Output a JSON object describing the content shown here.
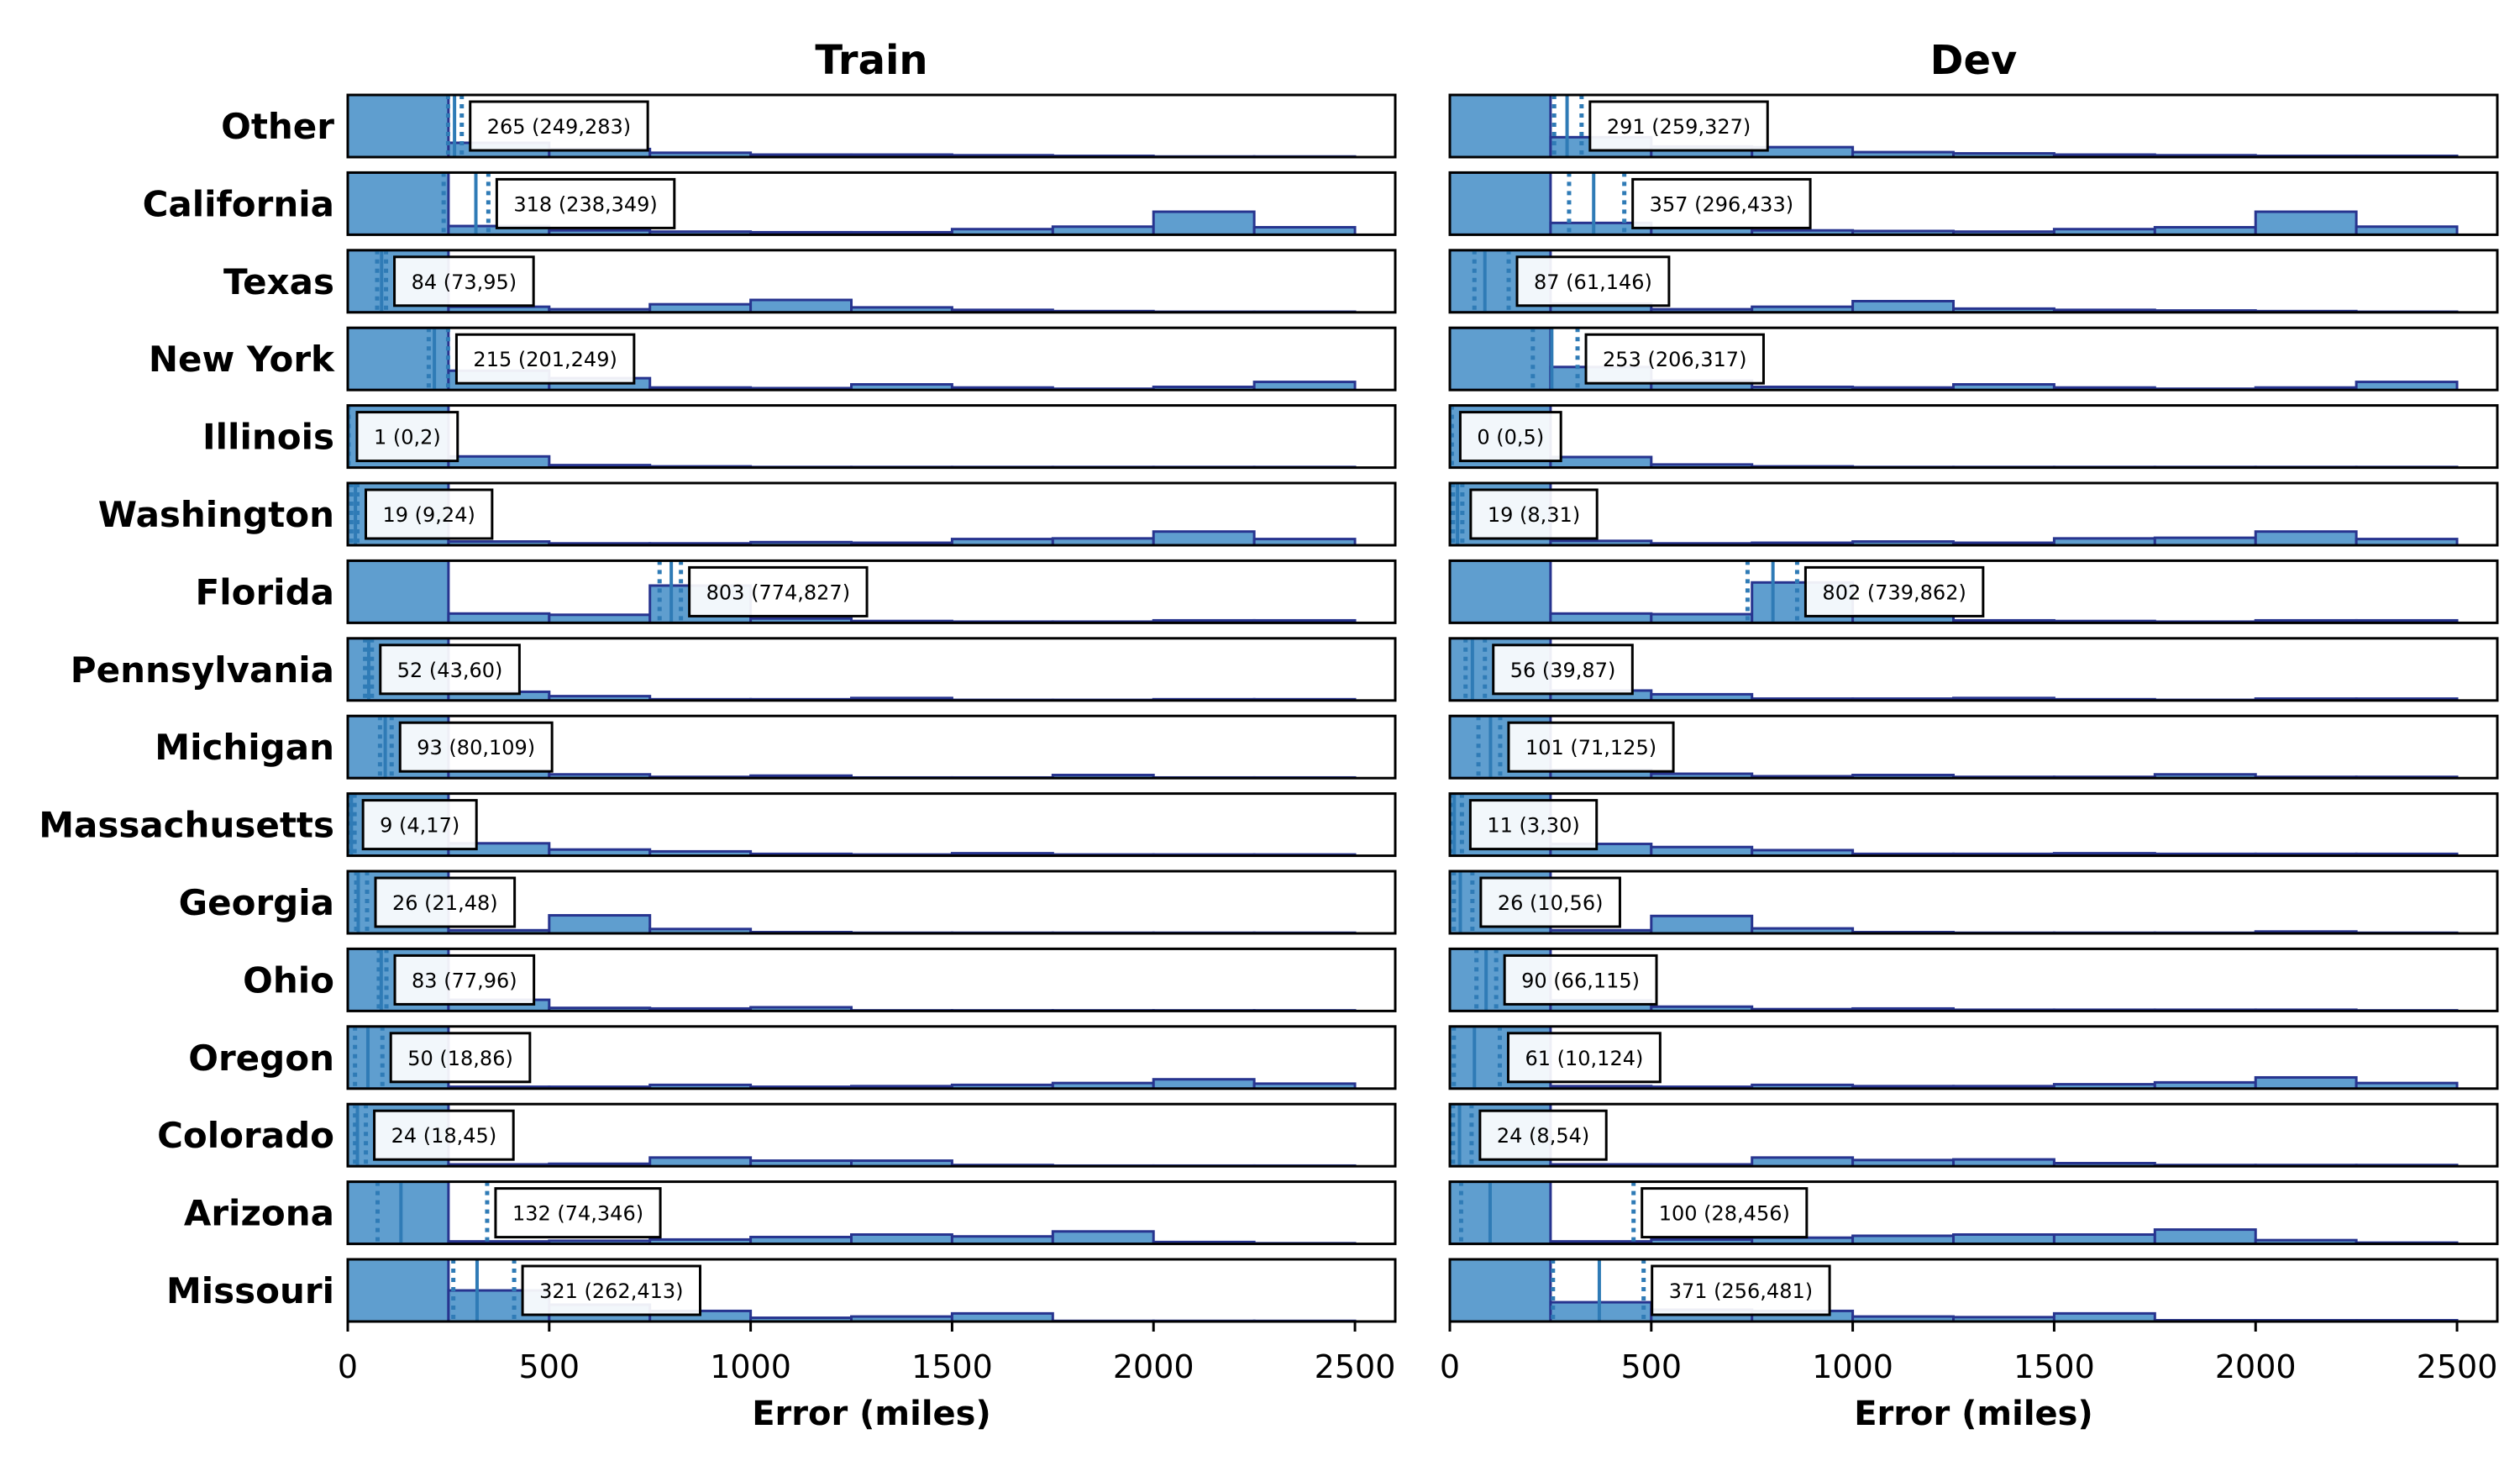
{
  "chart_data": {
    "type": "histogram",
    "xlabel": "Error (miles)",
    "xlim": [
      0,
      2600
    ],
    "x_ticks": [
      0,
      500,
      1000,
      1500,
      2000,
      2500
    ],
    "bin_edges": [
      0,
      250,
      500,
      750,
      1000,
      1250,
      1500,
      1750,
      2000,
      2250,
      2500
    ],
    "colors": {
      "bar_fill": "#5f9ecf",
      "bar_edge": "#27348f",
      "median_line": "#2f7bb6",
      "frame": "#000000"
    },
    "rows": [
      "Other",
      "California",
      "Texas",
      "New York",
      "Illinois",
      "Washington",
      "Florida",
      "Pennsylvania",
      "Michigan",
      "Massachusetts",
      "Georgia",
      "Ohio",
      "Oregon",
      "Colorado",
      "Arizona",
      "Missouri"
    ],
    "panels": [
      {
        "title": "Train",
        "series": [
          {
            "name": "Other",
            "median": 265,
            "ci": [
              249,
              283
            ],
            "label": "265 (249,283)",
            "hist": [
              1,
              0.23,
              0.13,
              0.07,
              0.04,
              0.04,
              0.03,
              0.02,
              0.01,
              0.01
            ]
          },
          {
            "name": "California",
            "median": 318,
            "ci": [
              238,
              349
            ],
            "label": "318 (238,349)",
            "hist": [
              1,
              0.14,
              0.07,
              0.05,
              0.04,
              0.04,
              0.09,
              0.13,
              0.37,
              0.12
            ]
          },
          {
            "name": "Texas",
            "median": 84,
            "ci": [
              73,
              95
            ],
            "label": "84 (73,95)",
            "hist": [
              1,
              0.09,
              0.05,
              0.13,
              0.2,
              0.08,
              0.04,
              0.02,
              0.01,
              0.01
            ]
          },
          {
            "name": "New York",
            "median": 215,
            "ci": [
              201,
              249
            ],
            "label": "215 (201,249)",
            "hist": [
              1,
              0.31,
              0.19,
              0.04,
              0.03,
              0.09,
              0.04,
              0.02,
              0.05,
              0.13
            ]
          },
          {
            "name": "Illinois",
            "median": 1,
            "ci": [
              0,
              2
            ],
            "label": "1 (0,2)",
            "hist": [
              1,
              0.18,
              0.04,
              0.02,
              0.01,
              0.01,
              0.01,
              0.01,
              0.01,
              0.01
            ]
          },
          {
            "name": "Washington",
            "median": 19,
            "ci": [
              9,
              24
            ],
            "label": "19 (9,24)",
            "hist": [
              1,
              0.06,
              0.03,
              0.03,
              0.05,
              0.04,
              0.1,
              0.11,
              0.22,
              0.1
            ]
          },
          {
            "name": "Florida",
            "median": 803,
            "ci": [
              774,
              827
            ],
            "label": "803 (774,827)",
            "hist": [
              1,
              0.15,
              0.13,
              0.6,
              0.07,
              0.03,
              0.02,
              0.02,
              0.04,
              0.04
            ]
          },
          {
            "name": "Pennsylvania",
            "median": 52,
            "ci": [
              43,
              60
            ],
            "label": "52 (43,60)",
            "hist": [
              1,
              0.14,
              0.07,
              0.02,
              0.02,
              0.04,
              0.01,
              0.01,
              0.02,
              0.02
            ]
          },
          {
            "name": "Michigan",
            "median": 93,
            "ci": [
              80,
              109
            ],
            "label": "93 (80,109)",
            "hist": [
              1,
              0.12,
              0.06,
              0.02,
              0.04,
              0.01,
              0.01,
              0.05,
              0.01,
              0.01
            ]
          },
          {
            "name": "Massachusetts",
            "median": 9,
            "ci": [
              4,
              17
            ],
            "label": "9 (4,17)",
            "hist": [
              1,
              0.2,
              0.1,
              0.07,
              0.03,
              0.02,
              0.04,
              0.02,
              0.02,
              0.02
            ]
          },
          {
            "name": "Georgia",
            "median": 26,
            "ci": [
              21,
              48
            ],
            "label": "26 (21,48)",
            "hist": [
              1,
              0.05,
              0.29,
              0.07,
              0.02,
              0.01,
              0.01,
              0.01,
              0.01,
              0.01
            ]
          },
          {
            "name": "Ohio",
            "median": 83,
            "ci": [
              77,
              96
            ],
            "label": "83 (77,96)",
            "hist": [
              1,
              0.18,
              0.05,
              0.04,
              0.06,
              0.01,
              0.01,
              0.01,
              0.01,
              0.01
            ]
          },
          {
            "name": "Oregon",
            "median": 50,
            "ci": [
              18,
              86
            ],
            "label": "50 (18,86)",
            "hist": [
              1,
              0.03,
              0.03,
              0.06,
              0.03,
              0.04,
              0.06,
              0.09,
              0.15,
              0.08
            ]
          },
          {
            "name": "Colorado",
            "median": 24,
            "ci": [
              18,
              45
            ],
            "label": "24 (18,45)",
            "hist": [
              1,
              0.03,
              0.04,
              0.14,
              0.09,
              0.09,
              0.02,
              0.01,
              0.01,
              0.01
            ]
          },
          {
            "name": "Arizona",
            "median": 132,
            "ci": [
              74,
              346
            ],
            "label": "132 (74,346)",
            "hist": [
              1,
              0.04,
              0.05,
              0.07,
              0.11,
              0.15,
              0.12,
              0.2,
              0.03,
              0.01
            ]
          },
          {
            "name": "Missouri",
            "median": 321,
            "ci": [
              262,
              413
            ],
            "label": "321 (262,413)",
            "hist": [
              1,
              0.5,
              0.27,
              0.17,
              0.06,
              0.08,
              0.13,
              0.01,
              0.01,
              0.01
            ]
          }
        ]
      },
      {
        "title": "Dev",
        "series": [
          {
            "name": "Other",
            "median": 291,
            "ci": [
              259,
              327
            ],
            "label": "291 (259,327)",
            "hist": [
              1,
              0.32,
              0.17,
              0.16,
              0.08,
              0.06,
              0.04,
              0.03,
              0.02,
              0.02
            ]
          },
          {
            "name": "California",
            "median": 357,
            "ci": [
              296,
              433
            ],
            "label": "357 (296,433)",
            "hist": [
              1,
              0.19,
              0.11,
              0.07,
              0.06,
              0.05,
              0.09,
              0.12,
              0.37,
              0.13
            ]
          },
          {
            "name": "Texas",
            "median": 87,
            "ci": [
              61,
              146
            ],
            "label": "87 (61,146)",
            "hist": [
              1,
              0.14,
              0.05,
              0.09,
              0.18,
              0.06,
              0.04,
              0.03,
              0.02,
              0.01
            ]
          },
          {
            "name": "New York",
            "median": 253,
            "ci": [
              206,
              317
            ],
            "label": "253 (206,317)",
            "hist": [
              1,
              0.37,
              0.15,
              0.05,
              0.04,
              0.09,
              0.04,
              0.02,
              0.04,
              0.13
            ]
          },
          {
            "name": "Illinois",
            "median": 0,
            "ci": [
              0,
              5
            ],
            "label": "0 (0,5)",
            "hist": [
              1,
              0.17,
              0.05,
              0.02,
              0.01,
              0.01,
              0.01,
              0.01,
              0.01,
              0.01
            ]
          },
          {
            "name": "Washington",
            "median": 19,
            "ci": [
              8,
              31
            ],
            "label": "19 (8,31)",
            "hist": [
              1,
              0.07,
              0.03,
              0.04,
              0.06,
              0.04,
              0.11,
              0.12,
              0.22,
              0.1
            ]
          },
          {
            "name": "Florida",
            "median": 802,
            "ci": [
              739,
              862
            ],
            "label": "802 (739,862)",
            "hist": [
              1,
              0.15,
              0.14,
              0.65,
              0.12,
              0.04,
              0.03,
              0.02,
              0.04,
              0.04
            ]
          },
          {
            "name": "Pennsylvania",
            "median": 56,
            "ci": [
              39,
              87
            ],
            "label": "56 (39,87)",
            "hist": [
              1,
              0.16,
              0.1,
              0.03,
              0.03,
              0.04,
              0.02,
              0.01,
              0.03,
              0.03
            ]
          },
          {
            "name": "Michigan",
            "median": 101,
            "ci": [
              71,
              125
            ],
            "label": "101 (71,125)",
            "hist": [
              1,
              0.13,
              0.07,
              0.03,
              0.05,
              0.02,
              0.02,
              0.06,
              0.02,
              0.02
            ]
          },
          {
            "name": "Massachusetts",
            "median": 11,
            "ci": [
              3,
              30
            ],
            "label": "11 (3,30)",
            "hist": [
              1,
              0.19,
              0.14,
              0.09,
              0.03,
              0.03,
              0.04,
              0.03,
              0.03,
              0.03
            ]
          },
          {
            "name": "Georgia",
            "median": 26,
            "ci": [
              10,
              56
            ],
            "label": "26 (10,56)",
            "hist": [
              1,
              0.05,
              0.28,
              0.08,
              0.02,
              0.01,
              0.01,
              0.01,
              0.03,
              0.01
            ]
          },
          {
            "name": "Ohio",
            "median": 90,
            "ci": [
              66,
              115
            ],
            "label": "90 (66,115)",
            "hist": [
              1,
              0.17,
              0.07,
              0.03,
              0.04,
              0.02,
              0.02,
              0.02,
              0.02,
              0.01
            ]
          },
          {
            "name": "Oregon",
            "median": 61,
            "ci": [
              10,
              124
            ],
            "label": "61 (10,124)",
            "hist": [
              1,
              0.04,
              0.03,
              0.06,
              0.04,
              0.04,
              0.07,
              0.1,
              0.18,
              0.09
            ]
          },
          {
            "name": "Colorado",
            "median": 24,
            "ci": [
              8,
              54
            ],
            "label": "24 (8,54)",
            "hist": [
              1,
              0.03,
              0.03,
              0.14,
              0.1,
              0.11,
              0.05,
              0.02,
              0.02,
              0.02
            ]
          },
          {
            "name": "Arizona",
            "median": 100,
            "ci": [
              28,
              456
            ],
            "label": "100 (28,456)",
            "hist": [
              1,
              0.04,
              0.07,
              0.1,
              0.13,
              0.15,
              0.15,
              0.23,
              0.06,
              0.02
            ]
          },
          {
            "name": "Missouri",
            "median": 371,
            "ci": [
              256,
              481
            ],
            "label": "371 (256,481)",
            "hist": [
              1,
              0.31,
              0.19,
              0.17,
              0.08,
              0.07,
              0.13,
              0.02,
              0.02,
              0.02
            ]
          }
        ]
      }
    ]
  }
}
